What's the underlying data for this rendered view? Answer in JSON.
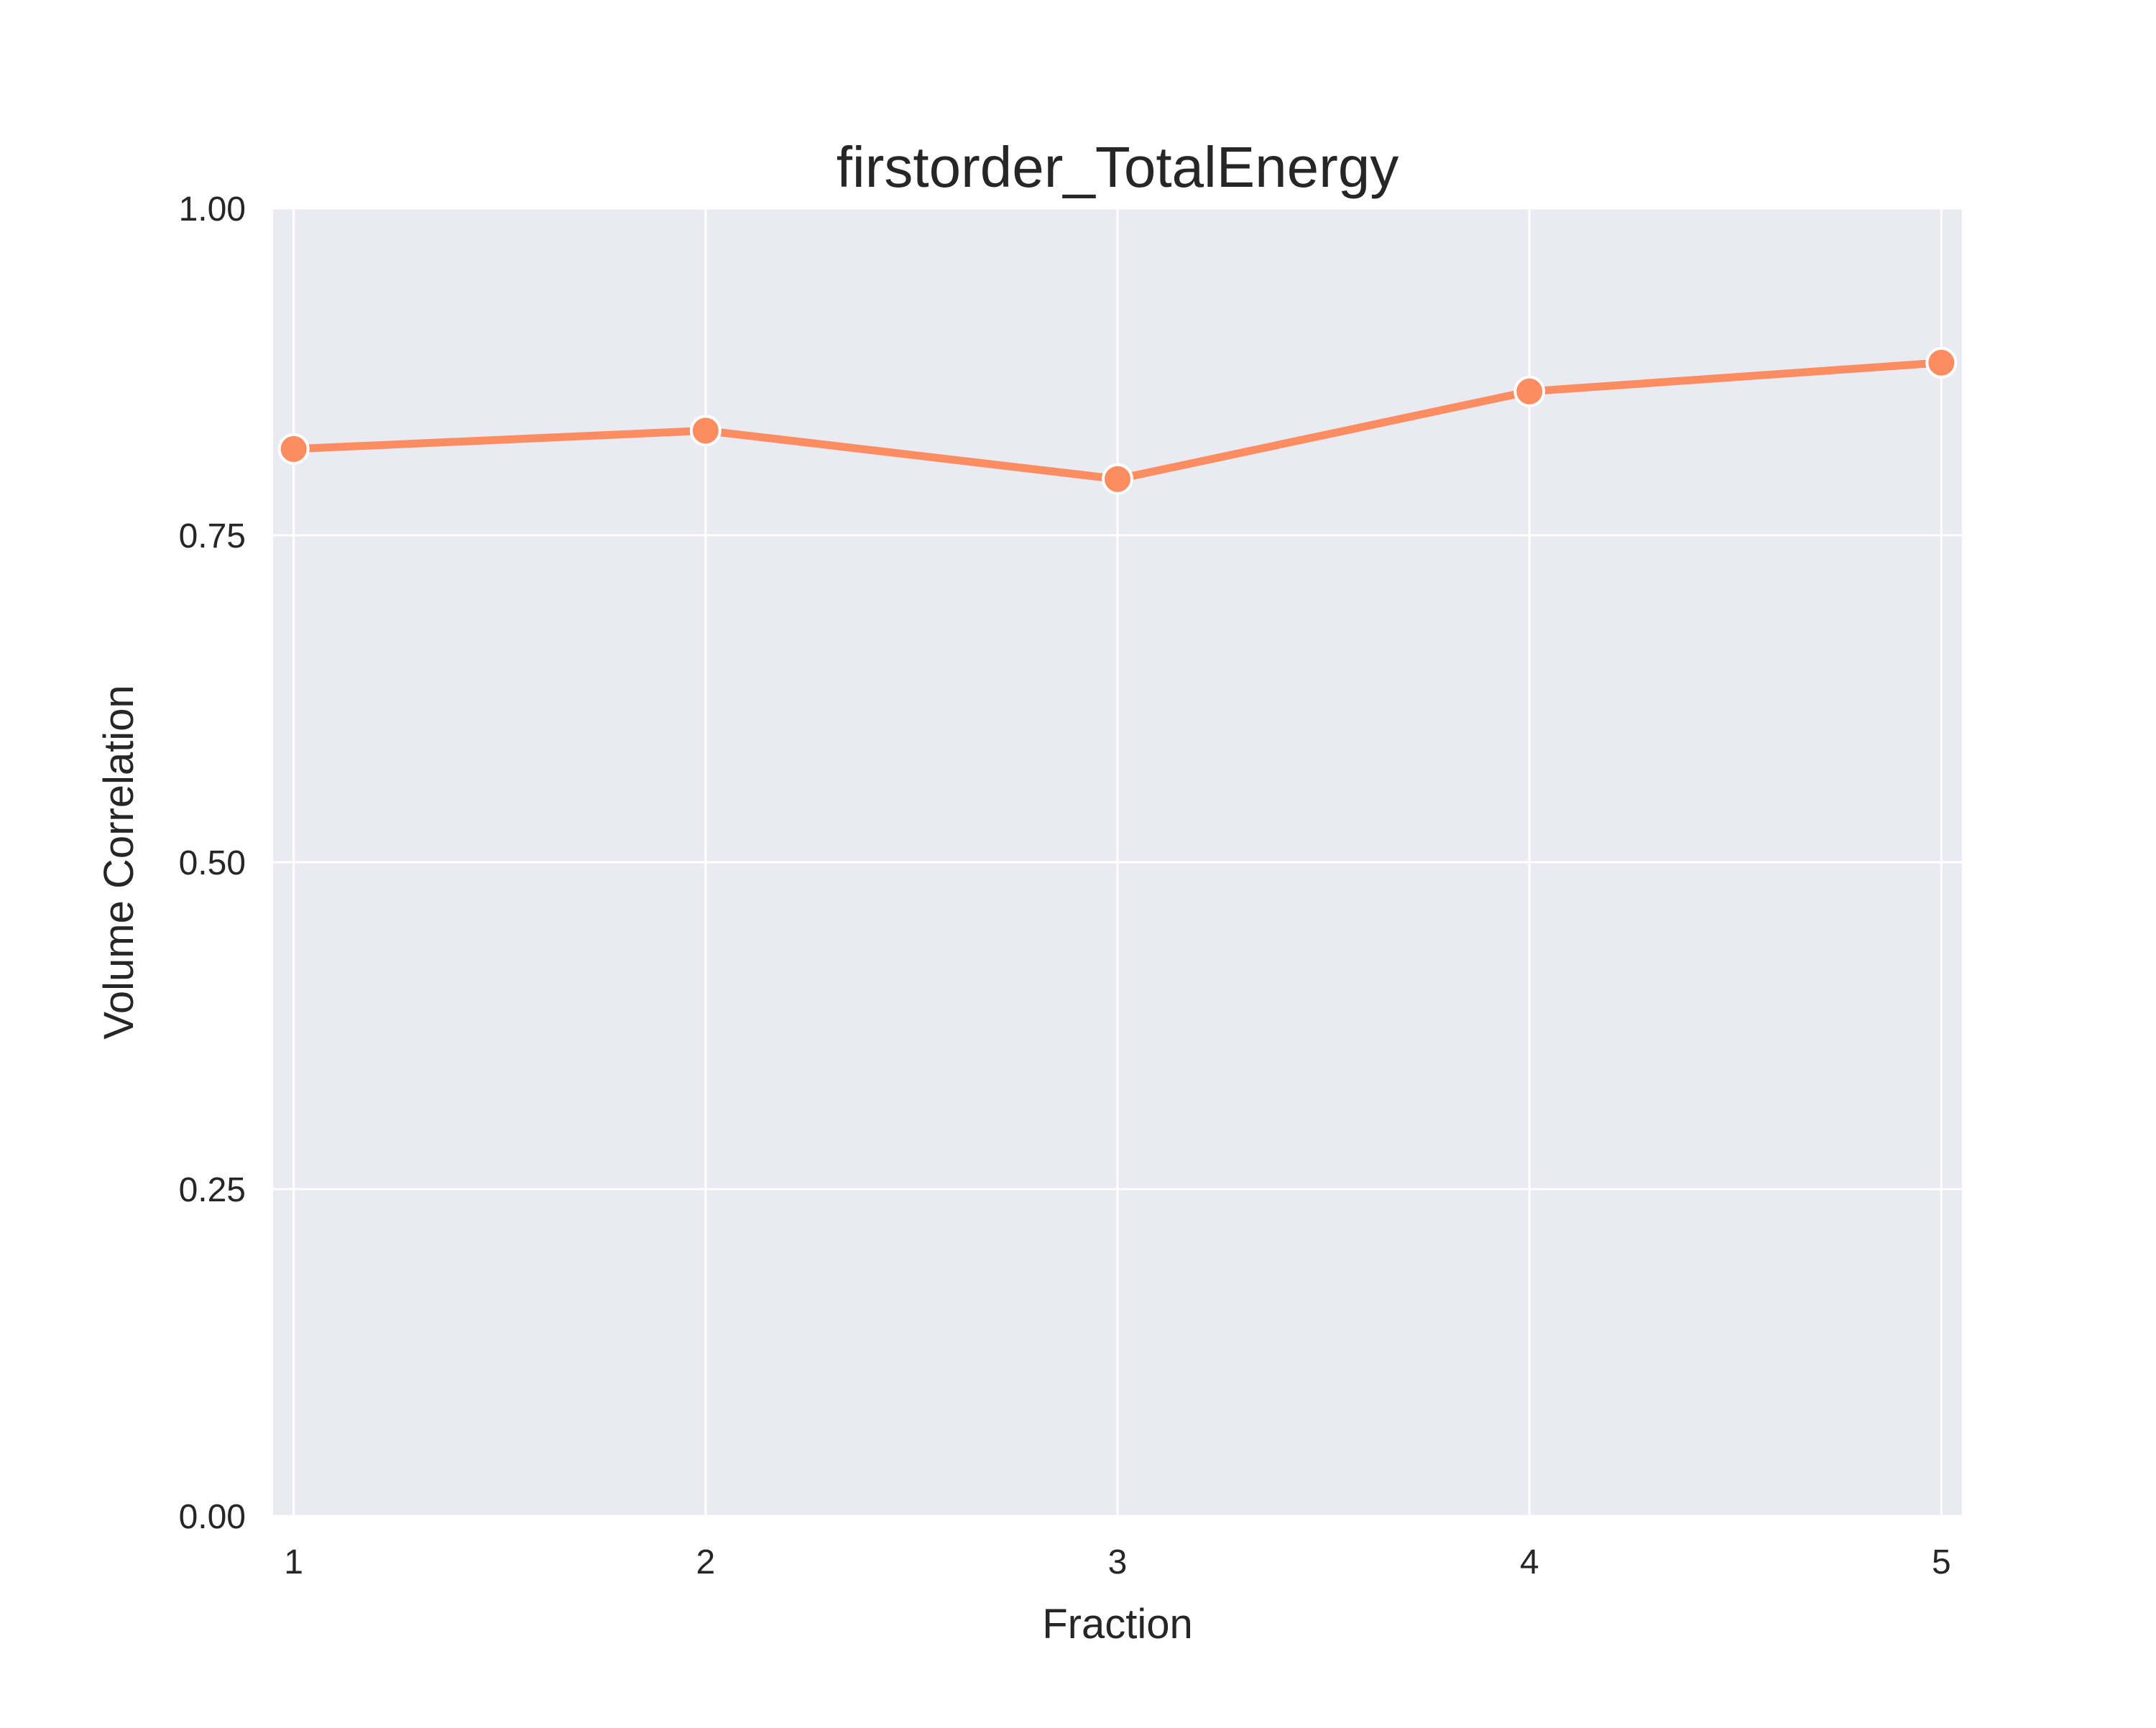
{
  "chart_data": {
    "type": "line",
    "title": "firstorder_TotalEnergy",
    "xlabel": "Fraction",
    "ylabel": "Volume Correlation",
    "x": [
      1,
      2,
      3,
      4,
      5
    ],
    "x_tick_labels": [
      "1",
      "2",
      "3",
      "4",
      "5"
    ],
    "y_ticks": [
      0,
      0.25,
      0.5,
      0.75,
      1.0
    ],
    "y_tick_labels": [
      "0.00",
      "0.25",
      "0.50",
      "0.75",
      "1.00"
    ],
    "xlim": [
      0.95,
      5.05
    ],
    "ylim": [
      0,
      1
    ],
    "grid": true,
    "series": [
      {
        "values": [
          0.816,
          0.83,
          0.793,
          0.86,
          0.882
        ],
        "color": "#fc8d62"
      }
    ],
    "background_color": "#eaeaf2",
    "grid_color": "#ffffff"
  }
}
